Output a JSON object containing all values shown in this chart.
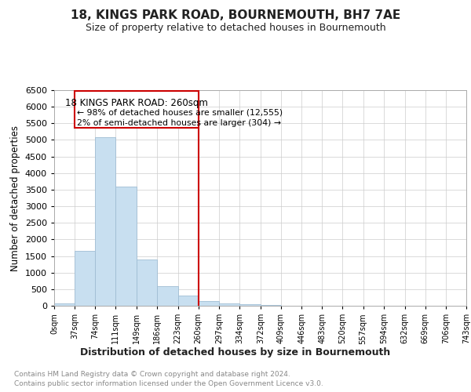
{
  "title": "18, KINGS PARK ROAD, BOURNEMOUTH, BH7 7AE",
  "subtitle": "Size of property relative to detached houses in Bournemouth",
  "xlabel": "Distribution of detached houses by size in Bournemouth",
  "ylabel": "Number of detached properties",
  "annotation_line1": "18 KINGS PARK ROAD: 260sqm",
  "annotation_line2": "← 98% of detached houses are smaller (12,555)",
  "annotation_line3": "2% of semi-detached houses are larger (304) →",
  "property_size": 260,
  "bar_edges": [
    0,
    37,
    74,
    111,
    149,
    186,
    223,
    260,
    297,
    334,
    372,
    409,
    446,
    483,
    520,
    557,
    594,
    632,
    669,
    706,
    743
  ],
  "bar_heights": [
    75,
    1650,
    5075,
    3600,
    1400,
    600,
    300,
    150,
    75,
    50,
    20,
    10,
    5,
    0,
    0,
    0,
    0,
    0,
    0,
    0
  ],
  "bar_color": "#c8dff0",
  "bar_edge_color": "#a0bdd4",
  "vline_color": "#cc0000",
  "vline_x": 260,
  "ylim": [
    0,
    6500
  ],
  "yticks": [
    0,
    500,
    1000,
    1500,
    2000,
    2500,
    3000,
    3500,
    4000,
    4500,
    5000,
    5500,
    6000,
    6500
  ],
  "bg_color": "#ffffff",
  "grid_color": "#cccccc",
  "footnote1": "Contains HM Land Registry data © Crown copyright and database right 2024.",
  "footnote2": "Contains public sector information licensed under the Open Government Licence v3.0."
}
